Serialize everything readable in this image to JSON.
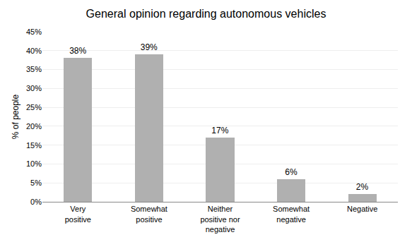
{
  "chart_data": {
    "type": "bar",
    "title": "General opinion regarding autonomous vehicles",
    "categories": [
      "Very\npositive",
      "Somewhat\npositive",
      "Neither\npositive nor\nnegative",
      "Somewhat\nnegative",
      "Negative"
    ],
    "values": [
      38,
      39,
      17,
      6,
      2
    ],
    "value_labels": [
      "38%",
      "39%",
      "17%",
      "6%",
      "2%"
    ],
    "data_labels": true,
    "color": "#b0b0b0",
    "ylabel": "% of people",
    "ylim": [
      0,
      45
    ],
    "yticks": [
      {
        "value": 0,
        "label": "0%"
      },
      {
        "value": 5,
        "label": "5%"
      },
      {
        "value": 10,
        "label": "10%"
      },
      {
        "value": 15,
        "label": "15%"
      },
      {
        "value": 20,
        "label": "20%"
      },
      {
        "value": 25,
        "label": "25%"
      },
      {
        "value": 30,
        "label": "30%"
      },
      {
        "value": 35,
        "label": "35%"
      },
      {
        "value": 40,
        "label": "40%"
      },
      {
        "value": 45,
        "label": "45%"
      }
    ],
    "grid": true
  }
}
